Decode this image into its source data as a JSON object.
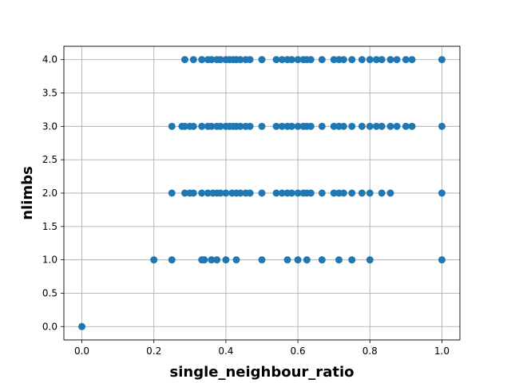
{
  "chart_data": {
    "type": "scatter",
    "xlabel": "single_neighbour_ratio",
    "ylabel": "nlimbs",
    "xlim": [
      -0.05,
      1.05
    ],
    "ylim": [
      -0.2,
      4.2
    ],
    "xticks": [
      {
        "value": 0.0,
        "label": "0.0"
      },
      {
        "value": 0.2,
        "label": "0.2"
      },
      {
        "value": 0.4,
        "label": "0.4"
      },
      {
        "value": 0.6,
        "label": "0.6"
      },
      {
        "value": 0.8,
        "label": "0.8"
      },
      {
        "value": 1.0,
        "label": "1.0"
      }
    ],
    "yticks": [
      {
        "value": 0.0,
        "label": "0.0"
      },
      {
        "value": 0.5,
        "label": "0.5"
      },
      {
        "value": 1.0,
        "label": "1.0"
      },
      {
        "value": 1.5,
        "label": "1.5"
      },
      {
        "value": 2.0,
        "label": "2.0"
      },
      {
        "value": 2.5,
        "label": "2.5"
      },
      {
        "value": 3.0,
        "label": "3.0"
      },
      {
        "value": 3.5,
        "label": "3.5"
      },
      {
        "value": 4.0,
        "label": "4.0"
      }
    ],
    "grid": true,
    "marker_color": "#1f77b4",
    "series": [
      {
        "points": [
          {
            "x": 0.0,
            "y": 0
          },
          {
            "x": 0.2,
            "y": 1
          },
          {
            "x": 0.25,
            "y": 1
          },
          {
            "x": 0.333,
            "y": 1
          },
          {
            "x": 0.34,
            "y": 1
          },
          {
            "x": 0.36,
            "y": 1
          },
          {
            "x": 0.375,
            "y": 1
          },
          {
            "x": 0.4,
            "y": 1
          },
          {
            "x": 0.429,
            "y": 1
          },
          {
            "x": 0.5,
            "y": 1
          },
          {
            "x": 0.571,
            "y": 1
          },
          {
            "x": 0.6,
            "y": 1
          },
          {
            "x": 0.625,
            "y": 1
          },
          {
            "x": 0.667,
            "y": 1
          },
          {
            "x": 0.714,
            "y": 1
          },
          {
            "x": 0.75,
            "y": 1
          },
          {
            "x": 0.8,
            "y": 1
          },
          {
            "x": 1.0,
            "y": 1
          },
          {
            "x": 0.25,
            "y": 2
          },
          {
            "x": 0.286,
            "y": 2
          },
          {
            "x": 0.3,
            "y": 2
          },
          {
            "x": 0.31,
            "y": 2
          },
          {
            "x": 0.333,
            "y": 2
          },
          {
            "x": 0.35,
            "y": 2
          },
          {
            "x": 0.364,
            "y": 2
          },
          {
            "x": 0.375,
            "y": 2
          },
          {
            "x": 0.385,
            "y": 2
          },
          {
            "x": 0.4,
            "y": 2
          },
          {
            "x": 0.417,
            "y": 2
          },
          {
            "x": 0.429,
            "y": 2
          },
          {
            "x": 0.44,
            "y": 2
          },
          {
            "x": 0.455,
            "y": 2
          },
          {
            "x": 0.467,
            "y": 2
          },
          {
            "x": 0.5,
            "y": 2
          },
          {
            "x": 0.54,
            "y": 2
          },
          {
            "x": 0.556,
            "y": 2
          },
          {
            "x": 0.571,
            "y": 2
          },
          {
            "x": 0.583,
            "y": 2
          },
          {
            "x": 0.6,
            "y": 2
          },
          {
            "x": 0.615,
            "y": 2
          },
          {
            "x": 0.625,
            "y": 2
          },
          {
            "x": 0.636,
            "y": 2
          },
          {
            "x": 0.667,
            "y": 2
          },
          {
            "x": 0.7,
            "y": 2
          },
          {
            "x": 0.714,
            "y": 2
          },
          {
            "x": 0.727,
            "y": 2
          },
          {
            "x": 0.75,
            "y": 2
          },
          {
            "x": 0.778,
            "y": 2
          },
          {
            "x": 0.8,
            "y": 2
          },
          {
            "x": 0.833,
            "y": 2
          },
          {
            "x": 0.857,
            "y": 2
          },
          {
            "x": 1.0,
            "y": 2
          },
          {
            "x": 0.25,
            "y": 3
          },
          {
            "x": 0.278,
            "y": 3
          },
          {
            "x": 0.286,
            "y": 3
          },
          {
            "x": 0.3,
            "y": 3
          },
          {
            "x": 0.31,
            "y": 3
          },
          {
            "x": 0.333,
            "y": 3
          },
          {
            "x": 0.35,
            "y": 3
          },
          {
            "x": 0.36,
            "y": 3
          },
          {
            "x": 0.375,
            "y": 3
          },
          {
            "x": 0.385,
            "y": 3
          },
          {
            "x": 0.4,
            "y": 3
          },
          {
            "x": 0.41,
            "y": 3
          },
          {
            "x": 0.42,
            "y": 3
          },
          {
            "x": 0.429,
            "y": 3
          },
          {
            "x": 0.44,
            "y": 3
          },
          {
            "x": 0.455,
            "y": 3
          },
          {
            "x": 0.467,
            "y": 3
          },
          {
            "x": 0.5,
            "y": 3
          },
          {
            "x": 0.54,
            "y": 3
          },
          {
            "x": 0.556,
            "y": 3
          },
          {
            "x": 0.571,
            "y": 3
          },
          {
            "x": 0.583,
            "y": 3
          },
          {
            "x": 0.6,
            "y": 3
          },
          {
            "x": 0.615,
            "y": 3
          },
          {
            "x": 0.625,
            "y": 3
          },
          {
            "x": 0.636,
            "y": 3
          },
          {
            "x": 0.667,
            "y": 3
          },
          {
            "x": 0.7,
            "y": 3
          },
          {
            "x": 0.714,
            "y": 3
          },
          {
            "x": 0.727,
            "y": 3
          },
          {
            "x": 0.75,
            "y": 3
          },
          {
            "x": 0.778,
            "y": 3
          },
          {
            "x": 0.8,
            "y": 3
          },
          {
            "x": 0.818,
            "y": 3
          },
          {
            "x": 0.833,
            "y": 3
          },
          {
            "x": 0.857,
            "y": 3
          },
          {
            "x": 0.875,
            "y": 3
          },
          {
            "x": 0.9,
            "y": 3
          },
          {
            "x": 0.917,
            "y": 3
          },
          {
            "x": 1.0,
            "y": 3
          },
          {
            "x": 0.286,
            "y": 4
          },
          {
            "x": 0.31,
            "y": 4
          },
          {
            "x": 0.333,
            "y": 4
          },
          {
            "x": 0.35,
            "y": 4
          },
          {
            "x": 0.36,
            "y": 4
          },
          {
            "x": 0.375,
            "y": 4
          },
          {
            "x": 0.385,
            "y": 4
          },
          {
            "x": 0.4,
            "y": 4
          },
          {
            "x": 0.41,
            "y": 4
          },
          {
            "x": 0.42,
            "y": 4
          },
          {
            "x": 0.429,
            "y": 4
          },
          {
            "x": 0.44,
            "y": 4
          },
          {
            "x": 0.455,
            "y": 4
          },
          {
            "x": 0.467,
            "y": 4
          },
          {
            "x": 0.5,
            "y": 4
          },
          {
            "x": 0.54,
            "y": 4
          },
          {
            "x": 0.556,
            "y": 4
          },
          {
            "x": 0.571,
            "y": 4
          },
          {
            "x": 0.583,
            "y": 4
          },
          {
            "x": 0.6,
            "y": 4
          },
          {
            "x": 0.615,
            "y": 4
          },
          {
            "x": 0.625,
            "y": 4
          },
          {
            "x": 0.636,
            "y": 4
          },
          {
            "x": 0.667,
            "y": 4
          },
          {
            "x": 0.7,
            "y": 4
          },
          {
            "x": 0.714,
            "y": 4
          },
          {
            "x": 0.727,
            "y": 4
          },
          {
            "x": 0.75,
            "y": 4
          },
          {
            "x": 0.778,
            "y": 4
          },
          {
            "x": 0.8,
            "y": 4
          },
          {
            "x": 0.818,
            "y": 4
          },
          {
            "x": 0.833,
            "y": 4
          },
          {
            "x": 0.857,
            "y": 4
          },
          {
            "x": 0.875,
            "y": 4
          },
          {
            "x": 0.9,
            "y": 4
          },
          {
            "x": 0.917,
            "y": 4
          },
          {
            "x": 1.0,
            "y": 4
          }
        ]
      }
    ]
  }
}
